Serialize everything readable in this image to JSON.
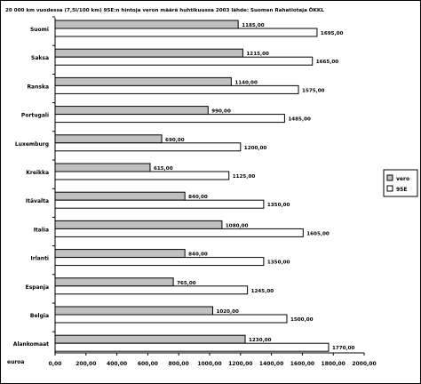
{
  "chart_data": {
    "type": "bar",
    "orientation": "horizontal",
    "title": "20 000 km vuodessa (7,5l/100 km) 95E:n hintoja veron määrä huhtikuussa 2003 lähde: Suomen Rahatiotaja ÖKKL",
    "xlabel": "euroa",
    "categories": [
      "Suomi",
      "Saksa",
      "Ranska",
      "Portugali",
      "Luxemburg",
      "Kreikka",
      "Itävalta",
      "Italia",
      "Irlanti",
      "Espanja",
      "Belgia",
      "Alankomaat"
    ],
    "series": [
      {
        "name": "vero",
        "color": "#c0c0c0",
        "values": [
          1185,
          1215,
          1140,
          990,
          690,
          615,
          840,
          1080,
          840,
          765,
          1020,
          1230
        ]
      },
      {
        "name": "95E",
        "color": "#ffffff",
        "values": [
          1695,
          1665,
          1575,
          1485,
          1200,
          1125,
          1350,
          1605,
          1350,
          1245,
          1500,
          1770
        ]
      }
    ],
    "value_labels": [
      [
        "1185,00",
        "1695,00"
      ],
      [
        "1215,00",
        "1665,00"
      ],
      [
        "1140,00",
        "1575,00"
      ],
      [
        "990,00",
        "1485,00"
      ],
      [
        "690,00",
        "1200,00"
      ],
      [
        "615,00",
        "1125,00"
      ],
      [
        "840,00",
        "1350,00"
      ],
      [
        "1080,00",
        "1605,00"
      ],
      [
        "840,00",
        "1350,00"
      ],
      [
        "765,00",
        "1245,00"
      ],
      [
        "1020,00",
        "1500,00"
      ],
      [
        "1230,00",
        "1770,00"
      ]
    ],
    "xlim": [
      0,
      2000
    ],
    "xticks": [
      0,
      200,
      400,
      600,
      800,
      1000,
      1200,
      1400,
      1600,
      1800,
      2000
    ],
    "xtick_labels": [
      "0,00",
      "200,00",
      "400,00",
      "600,00",
      "800,00",
      "1000,00",
      "1200,00",
      "1400,00",
      "1600,00",
      "1800,00",
      "2000,00"
    ],
    "grid": false,
    "legend_position": "right"
  }
}
